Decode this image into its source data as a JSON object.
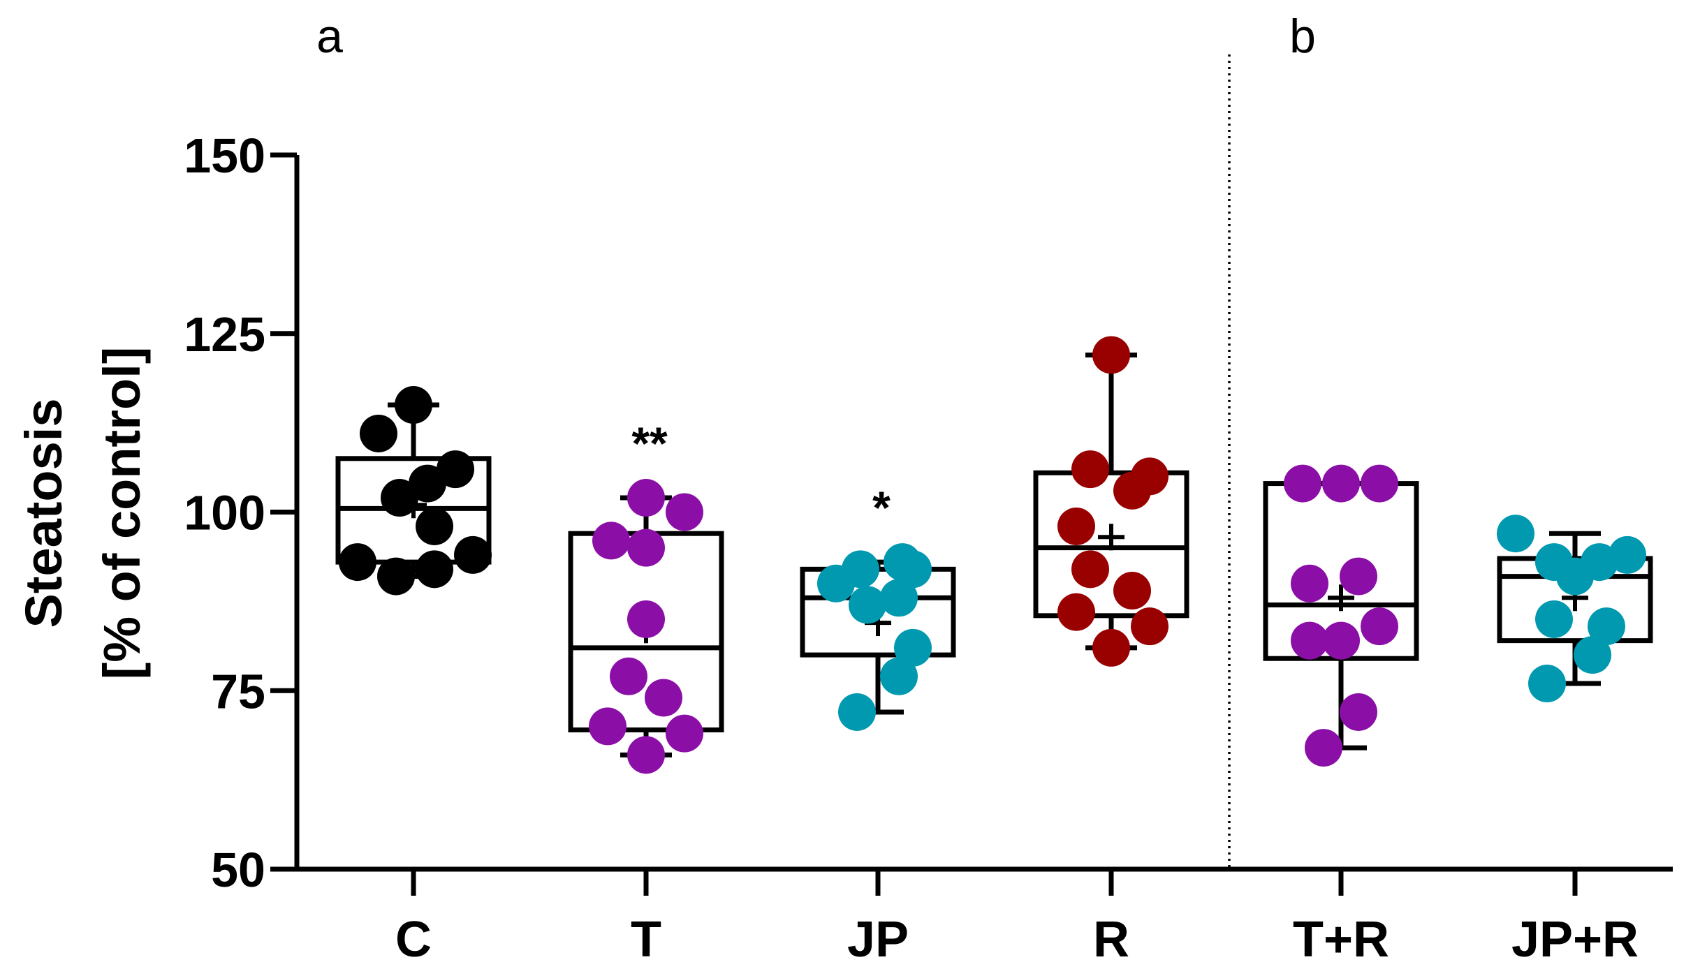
{
  "chart_data": {
    "type": "box",
    "panels": [
      "a",
      "b"
    ],
    "ylabel_line1": "Steatosis",
    "ylabel_line2": "[% of control]",
    "ylim": [
      50,
      150
    ],
    "yticks": [
      {
        "value": 50,
        "label": "50"
      },
      {
        "value": 75,
        "label": "75"
      },
      {
        "value": 100,
        "label": "100"
      },
      {
        "value": 125,
        "label": "125"
      },
      {
        "value": 150,
        "label": "150"
      }
    ],
    "groups": [
      {
        "name": "C",
        "panel": "a",
        "color": "#000000",
        "min": 91,
        "q1": 93,
        "median": 100.5,
        "q3": 107.5,
        "max": 115,
        "mean": 101,
        "points": [
          [
            0.0,
            115
          ],
          [
            -0.5,
            111
          ],
          [
            0.6,
            106
          ],
          [
            0.2,
            104
          ],
          [
            -0.2,
            102
          ],
          [
            0.3,
            98
          ],
          [
            -0.8,
            93
          ],
          [
            0.85,
            94
          ],
          [
            -0.25,
            91
          ],
          [
            0.3,
            92
          ]
        ],
        "significance": ""
      },
      {
        "name": "T",
        "panel": "a",
        "color": "#8B0FA6",
        "min": 66,
        "q1": 69.5,
        "median": 81,
        "q3": 97,
        "max": 102,
        "mean": 83.5,
        "points": [
          [
            0.0,
            102
          ],
          [
            0.55,
            100
          ],
          [
            -0.5,
            96
          ],
          [
            0.0,
            95
          ],
          [
            0.0,
            85
          ],
          [
            -0.25,
            77
          ],
          [
            0.25,
            74
          ],
          [
            -0.55,
            70
          ],
          [
            0.55,
            69
          ],
          [
            0.0,
            66
          ]
        ],
        "significance": "**"
      },
      {
        "name": "JP",
        "panel": "a",
        "color": "#0099B0",
        "min": 72,
        "q1": 80,
        "median": 88,
        "q3": 92,
        "max": 93,
        "mean": 84.5,
        "points": [
          [
            -0.25,
            92
          ],
          [
            0.35,
            93
          ],
          [
            0.5,
            92
          ],
          [
            -0.6,
            90
          ],
          [
            0.3,
            88
          ],
          [
            -0.15,
            87
          ],
          [
            0.5,
            81
          ],
          [
            0.3,
            77
          ],
          [
            -0.3,
            72
          ]
        ],
        "significance": "*"
      },
      {
        "name": "R",
        "panel": "a",
        "color": "#990000",
        "min": 81,
        "q1": 85.5,
        "median": 95,
        "q3": 105.5,
        "max": 122,
        "mean": 96.5,
        "points": [
          [
            0.0,
            122
          ],
          [
            -0.3,
            106
          ],
          [
            0.55,
            105
          ],
          [
            0.3,
            103
          ],
          [
            -0.5,
            98
          ],
          [
            -0.3,
            92
          ],
          [
            0.3,
            89
          ],
          [
            -0.5,
            86
          ],
          [
            0.55,
            84
          ],
          [
            0.0,
            81
          ]
        ],
        "significance": ""
      },
      {
        "name": "T+R",
        "panel": "b",
        "color": "#8B0FA6",
        "min": 67,
        "q1": 79.5,
        "median": 87,
        "q3": 104,
        "max": 104,
        "mean": 88,
        "points": [
          [
            -0.55,
            104
          ],
          [
            0.0,
            104
          ],
          [
            0.55,
            104
          ],
          [
            -0.45,
            90
          ],
          [
            0.25,
            91
          ],
          [
            0.55,
            84
          ],
          [
            -0.45,
            82
          ],
          [
            0.0,
            82
          ],
          [
            0.25,
            72
          ],
          [
            -0.25,
            67
          ]
        ],
        "significance": ""
      },
      {
        "name": "JP+R",
        "panel": "b",
        "color": "#0099B0",
        "min": 76,
        "q1": 82,
        "median": 91,
        "q3": 93.5,
        "max": 97,
        "mean": 88,
        "points": [
          [
            -0.85,
            97
          ],
          [
            -0.3,
            93
          ],
          [
            0.35,
            93
          ],
          [
            0.75,
            94
          ],
          [
            0.0,
            91
          ],
          [
            -0.3,
            85
          ],
          [
            0.45,
            84
          ],
          [
            0.25,
            80
          ],
          [
            -0.4,
            76
          ]
        ],
        "significance": ""
      }
    ]
  }
}
